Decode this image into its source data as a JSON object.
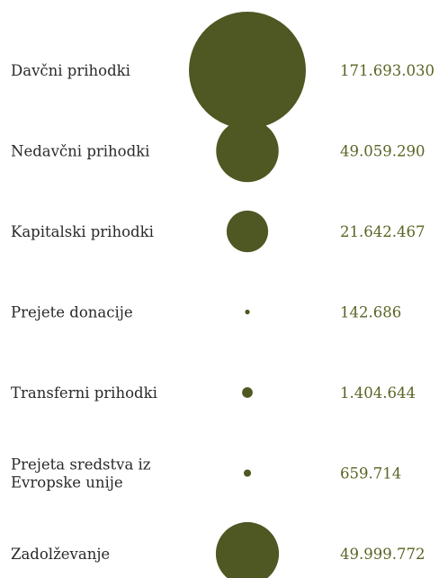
{
  "chart_data": {
    "type": "bubble",
    "color": "#4f5722",
    "value_color": "#5a6424",
    "label_color": "#2a2a2a",
    "rows": [
      {
        "label": [
          "Davčni prihodki"
        ],
        "value": 171693030,
        "value_text": "171.693.030"
      },
      {
        "label": [
          "Nedavčni prihodki"
        ],
        "value": 49059290,
        "value_text": "49.059.290"
      },
      {
        "label": [
          "Kapitalski prihodki"
        ],
        "value": 21642467,
        "value_text": "21.642.467"
      },
      {
        "label": [
          "Prejete donacije"
        ],
        "value": 142686,
        "value_text": "142.686"
      },
      {
        "label": [
          "Transferni prihodki"
        ],
        "value": 1404644,
        "value_text": "1.404.644"
      },
      {
        "label": [
          "Prejeta sredstva iz",
          "Evropske unije"
        ],
        "value": 659714,
        "value_text": "659.714"
      },
      {
        "label": [
          "Zadolževanje"
        ],
        "value": 49999772,
        "value_text": "49.999.772"
      }
    ]
  }
}
